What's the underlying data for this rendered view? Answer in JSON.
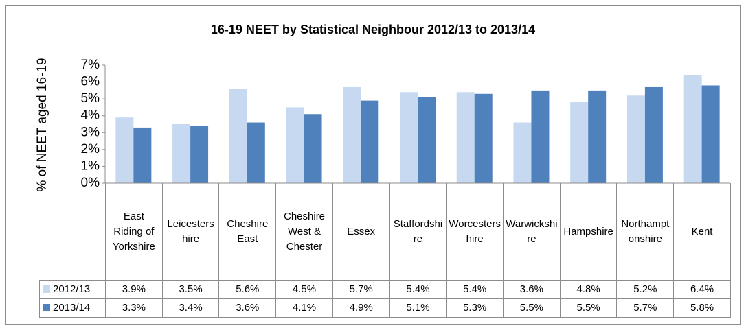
{
  "chart_data": {
    "type": "bar",
    "title": "16-19 NEET by Statistical Neighbour 2012/13 to 2013/14",
    "y_label": "% of NEET aged 16-19",
    "categories": [
      "East Riding of Yorkshire",
      "Leicestershire",
      "Cheshire East",
      "Cheshire West & Chester",
      "Essex",
      "Staffordshire",
      "Worcestershire",
      "Warwickshire",
      "Hampshire",
      "Northamptonshire",
      "Kent"
    ],
    "series": [
      {
        "name": "2012/13",
        "color": "#c6d9f1",
        "values": [
          3.9,
          3.5,
          5.6,
          4.5,
          5.7,
          5.4,
          5.4,
          3.6,
          4.8,
          5.2,
          6.4
        ],
        "value_labels": [
          "3.9%",
          "3.5%",
          "5.6%",
          "4.5%",
          "5.7%",
          "5.4%",
          "5.4%",
          "3.6%",
          "4.8%",
          "5.2%",
          "6.4%"
        ]
      },
      {
        "name": "2013/14",
        "color": "#4f81bd",
        "values": [
          3.3,
          3.4,
          3.6,
          4.1,
          4.9,
          5.1,
          5.3,
          5.5,
          5.5,
          5.7,
          5.8
        ],
        "value_labels": [
          "3.3%",
          "3.4%",
          "3.6%",
          "4.1%",
          "4.9%",
          "5.1%",
          "5.3%",
          "5.5%",
          "5.5%",
          "5.7%",
          "5.8%"
        ]
      }
    ],
    "ylim": [
      0,
      7
    ],
    "yticks": [
      {
        "value": 0,
        "label": "0%"
      },
      {
        "value": 1,
        "label": "1%"
      },
      {
        "value": 2,
        "label": "2%"
      },
      {
        "value": 3,
        "label": "3%"
      },
      {
        "value": 4,
        "label": "4%"
      },
      {
        "value": 5,
        "label": "5%"
      },
      {
        "value": 6,
        "label": "6%"
      },
      {
        "value": 7,
        "label": "7%"
      }
    ],
    "grid": false
  }
}
